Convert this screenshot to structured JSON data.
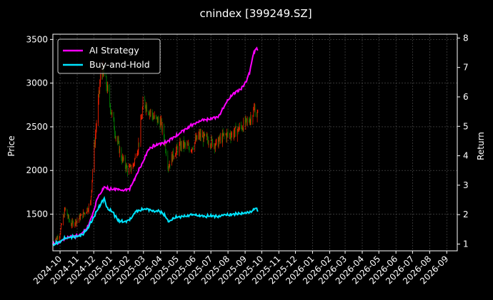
{
  "chart_data": {
    "type": "line",
    "title": "cnindex [399249.SZ]",
    "xlabel": "",
    "ylabel_left": "Price",
    "ylabel_right": "Return",
    "background": "#000000",
    "grid": true,
    "legend_position": "top-left",
    "x_tick_labels": [
      "2024-10",
      "2024-11",
      "2024-12",
      "2025-01",
      "2025-02",
      "2025-03",
      "2025-04",
      "2025-05",
      "2025-06",
      "2025-07",
      "2025-08",
      "2025-09",
      "2025-10",
      "2025-11",
      "2025-12",
      "2026-01",
      "2026-02",
      "2026-03",
      "2026-04",
      "2026-05",
      "2026-06",
      "2026-07",
      "2026-08",
      "2026-09"
    ],
    "xlim": [
      "2024-09-18",
      "2026-09-20"
    ],
    "y_left_ticks": [
      1500,
      2000,
      2500,
      3000,
      3500
    ],
    "y_left_lim": [
      1080,
      3560
    ],
    "y_right_ticks": [
      1,
      2,
      3,
      4,
      5,
      6,
      7,
      8
    ],
    "y_right_lim": [
      0.77,
      8.13
    ],
    "candlestick_colors": {
      "up": "#ff2200",
      "down": "#008800"
    },
    "price_path": [
      [
        "2024-09-18",
        1180
      ],
      [
        "2024-09-30",
        1260
      ],
      [
        "2024-10-10",
        1560
      ],
      [
        "2024-10-20",
        1380
      ],
      [
        "2024-11-01",
        1430
      ],
      [
        "2024-11-15",
        1520
      ],
      [
        "2024-11-25",
        1620
      ],
      [
        "2024-12-01",
        2200
      ],
      [
        "2024-12-08",
        2700
      ],
      [
        "2024-12-15",
        3200
      ],
      [
        "2024-12-25",
        2950
      ],
      [
        "2025-01-01",
        2700
      ],
      [
        "2025-01-10",
        2400
      ],
      [
        "2025-01-20",
        2150
      ],
      [
        "2025-02-01",
        2000
      ],
      [
        "2025-02-10",
        2050
      ],
      [
        "2025-02-20",
        2300
      ],
      [
        "2025-03-01",
        2800
      ],
      [
        "2025-03-10",
        2700
      ],
      [
        "2025-03-20",
        2600
      ],
      [
        "2025-04-01",
        2550
      ],
      [
        "2025-04-08",
        2350
      ],
      [
        "2025-04-15",
        2050
      ],
      [
        "2025-04-25",
        2200
      ],
      [
        "2025-05-10",
        2300
      ],
      [
        "2025-05-25",
        2250
      ],
      [
        "2025-06-10",
        2400
      ],
      [
        "2025-06-25",
        2350
      ],
      [
        "2025-07-10",
        2300
      ],
      [
        "2025-07-25",
        2400
      ],
      [
        "2025-08-10",
        2420
      ],
      [
        "2025-08-25",
        2500
      ],
      [
        "2025-09-05",
        2550
      ],
      [
        "2025-09-12",
        2620
      ],
      [
        "2025-09-18",
        2700
      ],
      [
        "2025-09-24",
        2620
      ]
    ],
    "series": [
      {
        "name": "AI Strategy",
        "color": "#ff00ff",
        "points": [
          [
            "2024-09-18",
            1.0
          ],
          [
            "2024-09-30",
            1.05
          ],
          [
            "2024-10-10",
            1.2
          ],
          [
            "2024-10-25",
            1.25
          ],
          [
            "2024-11-10",
            1.35
          ],
          [
            "2024-11-20",
            1.6
          ],
          [
            "2024-12-01",
            2.1
          ],
          [
            "2024-12-08",
            2.6
          ],
          [
            "2024-12-15",
            2.75
          ],
          [
            "2024-12-20",
            2.95
          ],
          [
            "2024-12-25",
            2.9
          ],
          [
            "2025-01-05",
            2.85
          ],
          [
            "2025-01-15",
            2.85
          ],
          [
            "2025-01-25",
            2.82
          ],
          [
            "2025-02-05",
            2.9
          ],
          [
            "2025-02-15",
            3.3
          ],
          [
            "2025-02-28",
            3.8
          ],
          [
            "2025-03-10",
            4.2
          ],
          [
            "2025-03-20",
            4.35
          ],
          [
            "2025-04-01",
            4.4
          ],
          [
            "2025-04-15",
            4.5
          ],
          [
            "2025-05-01",
            4.7
          ],
          [
            "2025-05-15",
            4.9
          ],
          [
            "2025-06-01",
            5.1
          ],
          [
            "2025-06-15",
            5.2
          ],
          [
            "2025-07-01",
            5.25
          ],
          [
            "2025-07-15",
            5.35
          ],
          [
            "2025-08-01",
            5.9
          ],
          [
            "2025-08-10",
            6.1
          ],
          [
            "2025-08-20",
            6.2
          ],
          [
            "2025-08-30",
            6.4
          ],
          [
            "2025-09-05",
            6.6
          ],
          [
            "2025-09-10",
            6.9
          ],
          [
            "2025-09-15",
            7.4
          ],
          [
            "2025-09-20",
            7.65
          ],
          [
            "2025-09-24",
            7.6
          ]
        ]
      },
      {
        "name": "Buy-and-Hold",
        "color": "#00e5ff",
        "points": [
          [
            "2024-09-18",
            1.0
          ],
          [
            "2024-09-30",
            1.05
          ],
          [
            "2024-10-10",
            1.2
          ],
          [
            "2024-10-25",
            1.25
          ],
          [
            "2024-11-10",
            1.3
          ],
          [
            "2024-11-20",
            1.55
          ],
          [
            "2024-12-01",
            1.9
          ],
          [
            "2024-12-08",
            2.2
          ],
          [
            "2024-12-15",
            2.4
          ],
          [
            "2024-12-20",
            2.55
          ],
          [
            "2024-12-25",
            2.25
          ],
          [
            "2025-01-05",
            2.05
          ],
          [
            "2025-01-15",
            1.8
          ],
          [
            "2025-01-25",
            1.75
          ],
          [
            "2025-02-05",
            1.85
          ],
          [
            "2025-02-15",
            2.1
          ],
          [
            "2025-03-01",
            2.2
          ],
          [
            "2025-03-15",
            2.15
          ],
          [
            "2025-04-01",
            2.1
          ],
          [
            "2025-04-10",
            1.95
          ],
          [
            "2025-04-15",
            1.75
          ],
          [
            "2025-04-25",
            1.9
          ],
          [
            "2025-05-15",
            1.95
          ],
          [
            "2025-06-01",
            2.0
          ],
          [
            "2025-06-15",
            1.95
          ],
          [
            "2025-07-01",
            1.95
          ],
          [
            "2025-07-15",
            1.95
          ],
          [
            "2025-08-01",
            2.0
          ],
          [
            "2025-08-15",
            2.02
          ],
          [
            "2025-09-01",
            2.05
          ],
          [
            "2025-09-10",
            2.1
          ],
          [
            "2025-09-18",
            2.2
          ],
          [
            "2025-09-24",
            2.15
          ]
        ]
      }
    ]
  }
}
